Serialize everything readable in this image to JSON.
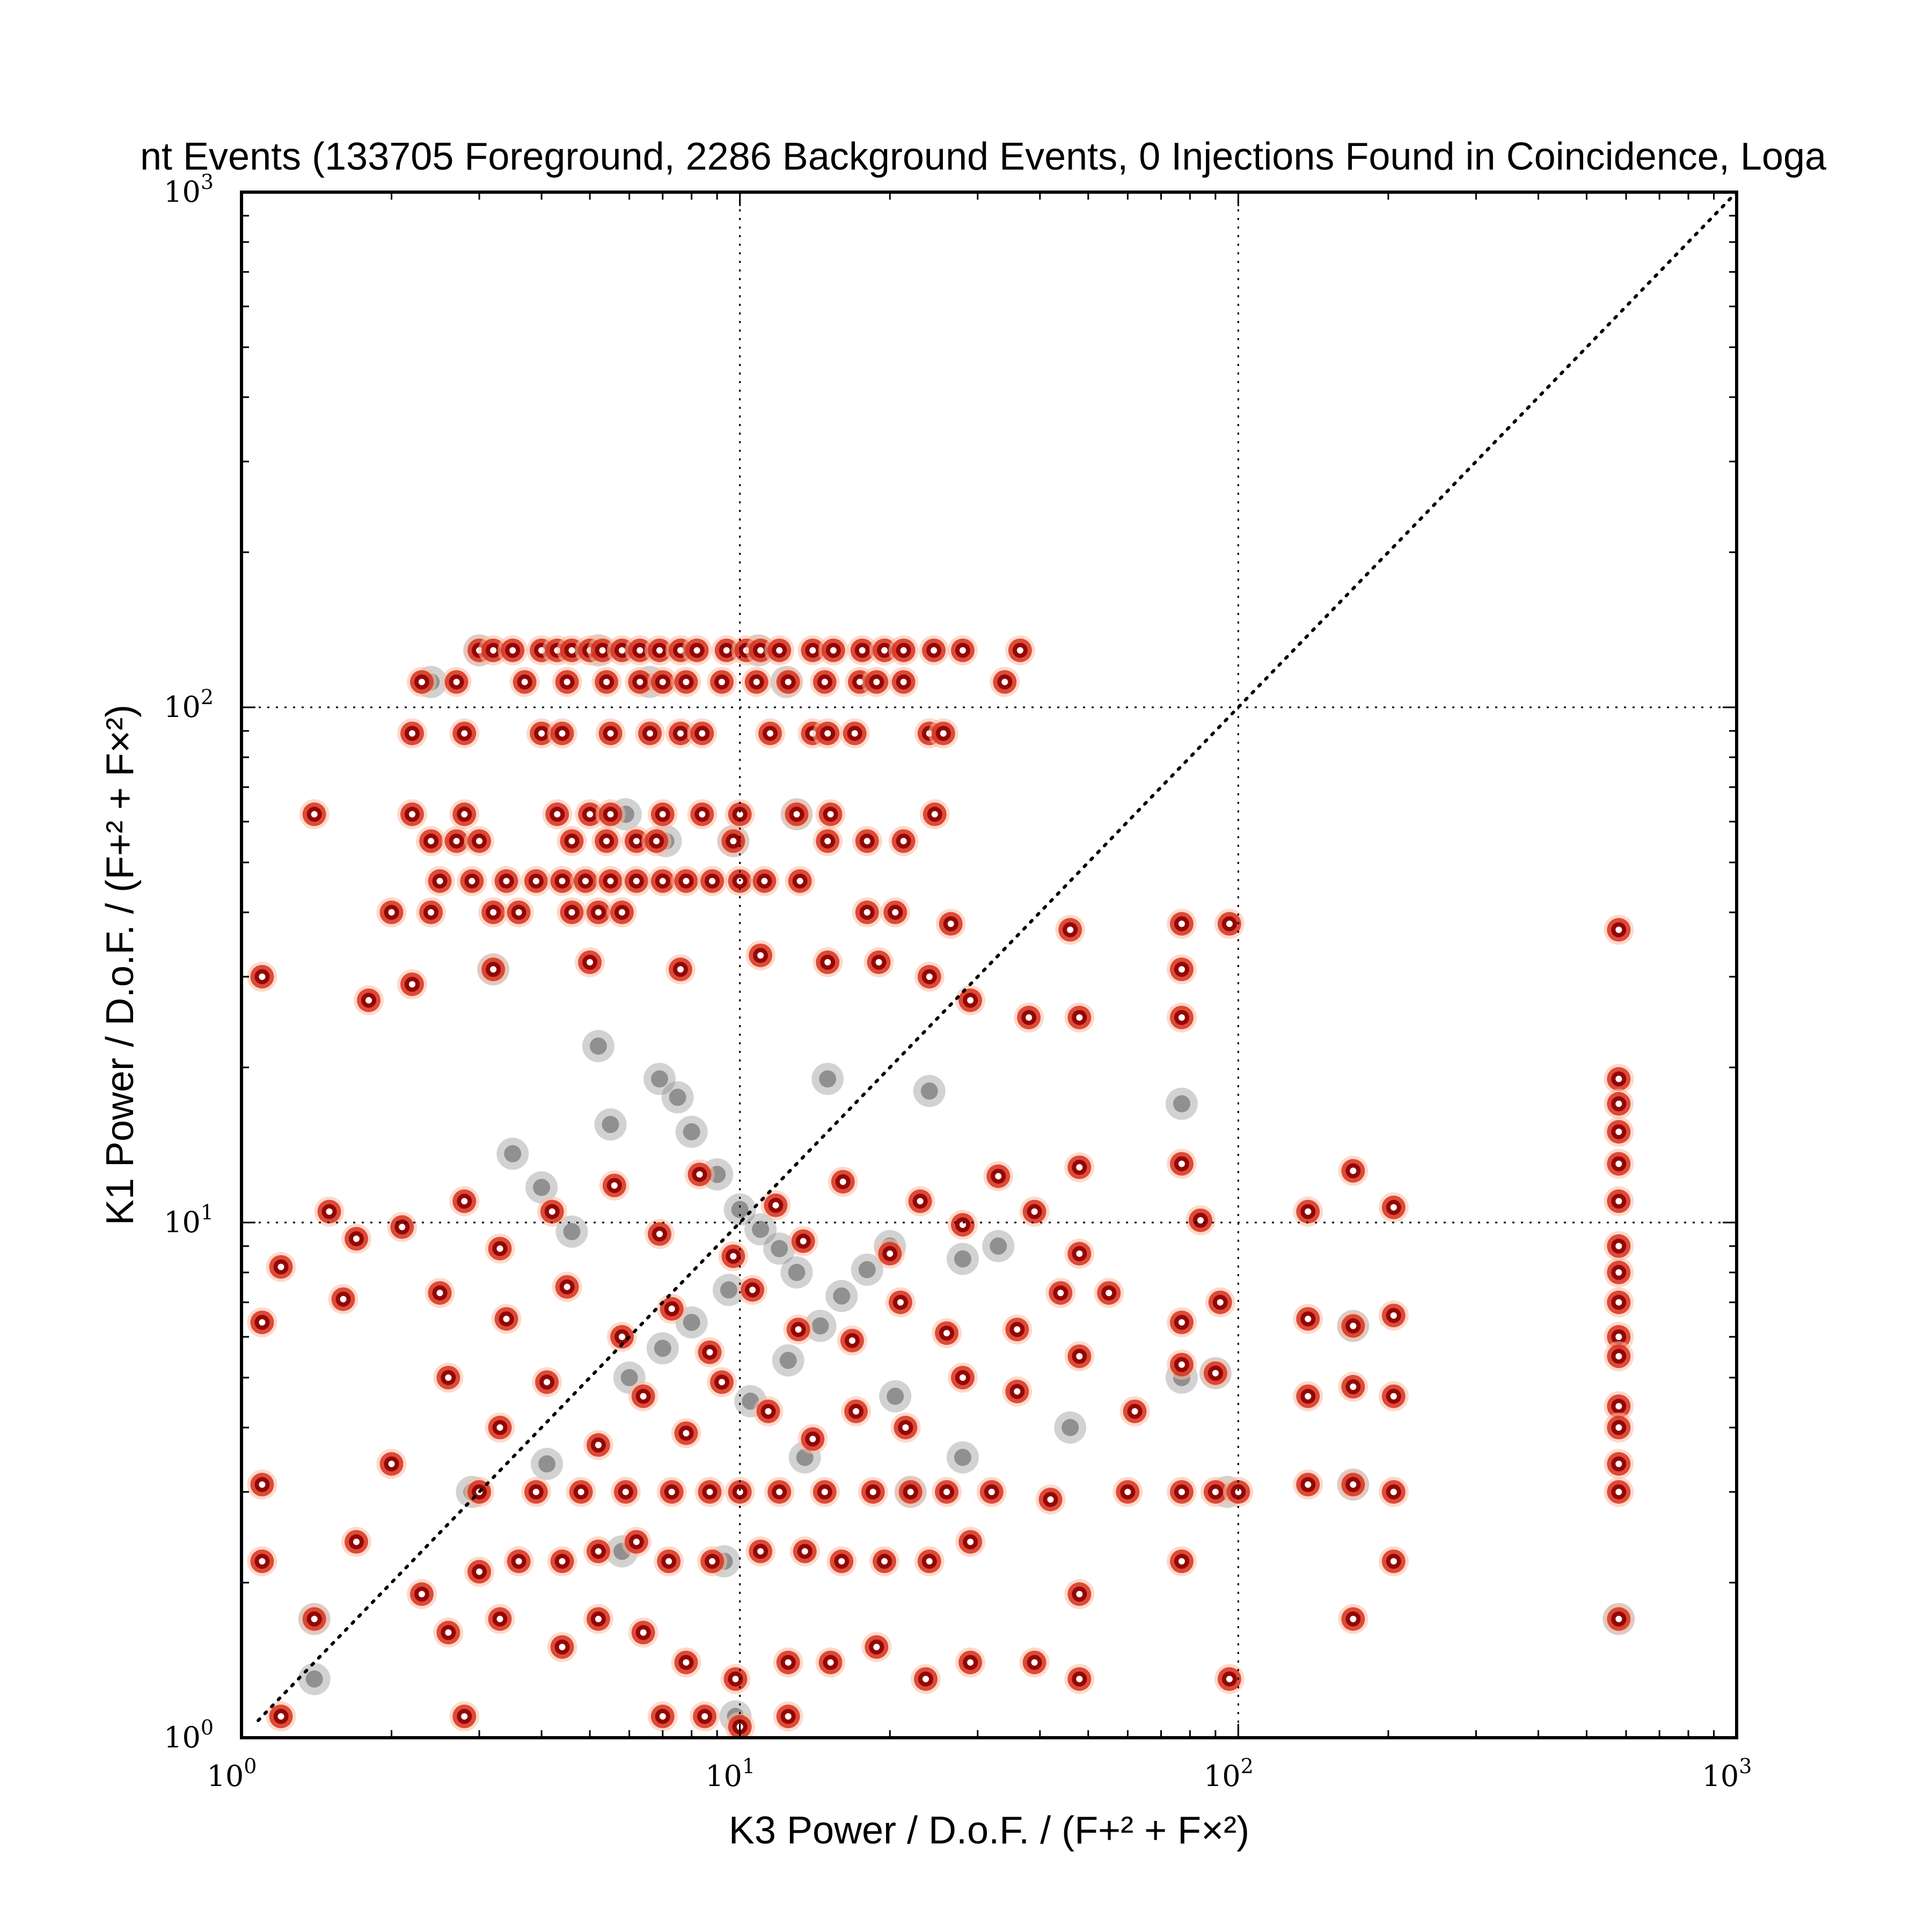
{
  "chart_data": {
    "type": "scatter",
    "title": "nt Events (133705 Foreground, 2286 Background Events, 0 Injections Found in Coincidence, Loga",
    "xlabel": "K3 Power / D.o.F. / (F+² + F×²)",
    "ylabel": "K1 Power / D.o.F. / (F+² + F×²)",
    "xscale": "log",
    "yscale": "log",
    "xlim": [
      1,
      1000
    ],
    "ylim": [
      1,
      1000
    ],
    "grid": true,
    "x_ticks": [
      {
        "base": "10",
        "exp": "0"
      },
      {
        "base": "10",
        "exp": "1"
      },
      {
        "base": "10",
        "exp": "2"
      },
      {
        "base": "10",
        "exp": "3"
      }
    ],
    "y_ticks": [
      {
        "base": "10",
        "exp": "0"
      },
      {
        "base": "10",
        "exp": "1"
      },
      {
        "base": "10",
        "exp": "2"
      },
      {
        "base": "10",
        "exp": "3"
      }
    ],
    "reference_line": "y = x",
    "colors": {
      "foreground_density": "#d7301f",
      "foreground_core": "#8b0000",
      "background_density": "#7f7f7f"
    },
    "foreground_points": [
      [
        3.0,
        129
      ],
      [
        3.2,
        129
      ],
      [
        3.5,
        129
      ],
      [
        4.0,
        129
      ],
      [
        4.3,
        129
      ],
      [
        4.6,
        129
      ],
      [
        5.0,
        129
      ],
      [
        5.3,
        129
      ],
      [
        5.8,
        129
      ],
      [
        6.3,
        129
      ],
      [
        6.9,
        129
      ],
      [
        7.6,
        129
      ],
      [
        8.2,
        129
      ],
      [
        9.4,
        129
      ],
      [
        10.3,
        129
      ],
      [
        11.0,
        129
      ],
      [
        12.0,
        129
      ],
      [
        14.0,
        129
      ],
      [
        15.4,
        129
      ],
      [
        17.6,
        129
      ],
      [
        19.5,
        129
      ],
      [
        21.3,
        129
      ],
      [
        24.5,
        129
      ],
      [
        28.0,
        129
      ],
      [
        36.5,
        129
      ],
      [
        2.3,
        112
      ],
      [
        2.7,
        112
      ],
      [
        3.7,
        112
      ],
      [
        4.5,
        112
      ],
      [
        5.4,
        112
      ],
      [
        6.3,
        112
      ],
      [
        7.0,
        112
      ],
      [
        7.8,
        112
      ],
      [
        9.2,
        112
      ],
      [
        10.8,
        112
      ],
      [
        12.5,
        112
      ],
      [
        14.8,
        112
      ],
      [
        17.4,
        112
      ],
      [
        18.8,
        112
      ],
      [
        21.3,
        112
      ],
      [
        34.0,
        112
      ],
      [
        2.2,
        89
      ],
      [
        2.8,
        89
      ],
      [
        4.0,
        89
      ],
      [
        4.4,
        89
      ],
      [
        5.5,
        89
      ],
      [
        6.6,
        89
      ],
      [
        7.6,
        89
      ],
      [
        8.4,
        89
      ],
      [
        11.5,
        89
      ],
      [
        14.0,
        89
      ],
      [
        15.0,
        89
      ],
      [
        17.0,
        89
      ],
      [
        24.0,
        89
      ],
      [
        25.6,
        89
      ],
      [
        1.4,
        62
      ],
      [
        2.2,
        62
      ],
      [
        2.8,
        62
      ],
      [
        4.3,
        62
      ],
      [
        5.0,
        62
      ],
      [
        5.5,
        62
      ],
      [
        7.0,
        62
      ],
      [
        8.4,
        62
      ],
      [
        10.0,
        62
      ],
      [
        13.0,
        62
      ],
      [
        15.2,
        62
      ],
      [
        24.6,
        62
      ],
      [
        2.4,
        55
      ],
      [
        2.7,
        55
      ],
      [
        3.0,
        55
      ],
      [
        4.6,
        55
      ],
      [
        5.4,
        55
      ],
      [
        6.2,
        55
      ],
      [
        6.8,
        55
      ],
      [
        9.7,
        55
      ],
      [
        15.0,
        55
      ],
      [
        18.0,
        55
      ],
      [
        21.3,
        55
      ],
      [
        2.5,
        46
      ],
      [
        2.9,
        46
      ],
      [
        3.4,
        46
      ],
      [
        3.9,
        46
      ],
      [
        4.4,
        46
      ],
      [
        4.9,
        46
      ],
      [
        5.5,
        46
      ],
      [
        6.2,
        46
      ],
      [
        7.0,
        46
      ],
      [
        7.8,
        46
      ],
      [
        8.8,
        46
      ],
      [
        10.0,
        46
      ],
      [
        11.2,
        46
      ],
      [
        13.2,
        46
      ],
      [
        2.0,
        40
      ],
      [
        2.4,
        40
      ],
      [
        3.2,
        40
      ],
      [
        3.6,
        40
      ],
      [
        4.6,
        40
      ],
      [
        5.2,
        40
      ],
      [
        5.8,
        40
      ],
      [
        18.0,
        40
      ],
      [
        20.5,
        40
      ],
      [
        26.5,
        38
      ],
      [
        46,
        37
      ],
      [
        77,
        38
      ],
      [
        96,
        38
      ],
      [
        580,
        37
      ],
      [
        1.1,
        30
      ],
      [
        1.8,
        27
      ],
      [
        2.2,
        29
      ],
      [
        3.2,
        31
      ],
      [
        5.0,
        32
      ],
      [
        7.6,
        31
      ],
      [
        11.0,
        33
      ],
      [
        15.0,
        32
      ],
      [
        19.0,
        32
      ],
      [
        24.0,
        30
      ],
      [
        29.0,
        27
      ],
      [
        38.0,
        25
      ],
      [
        48.0,
        25
      ],
      [
        77,
        31
      ],
      [
        77,
        25
      ],
      [
        580,
        19
      ],
      [
        580,
        17
      ],
      [
        580,
        15
      ],
      [
        580,
        13
      ],
      [
        580,
        11
      ],
      [
        1.5,
        10.5
      ],
      [
        1.7,
        9.3
      ],
      [
        1.2,
        8.2
      ],
      [
        1.6,
        7.1
      ],
      [
        1.1,
        6.4
      ],
      [
        2.1,
        9.8
      ],
      [
        2.8,
        11.0
      ],
      [
        3.3,
        8.9
      ],
      [
        4.2,
        10.5
      ],
      [
        5.6,
        11.8
      ],
      [
        6.9,
        9.5
      ],
      [
        8.3,
        12.4
      ],
      [
        9.7,
        8.6
      ],
      [
        11.8,
        10.8
      ],
      [
        13.4,
        9.2
      ],
      [
        16.1,
        12.0
      ],
      [
        20.0,
        8.7
      ],
      [
        23.0,
        11.0
      ],
      [
        28.0,
        9.9
      ],
      [
        33.0,
        12.3
      ],
      [
        39.0,
        10.5
      ],
      [
        48.0,
        12.8
      ],
      [
        48,
        8.7
      ],
      [
        77,
        13.0
      ],
      [
        84,
        10.1
      ],
      [
        138,
        10.5
      ],
      [
        170,
        12.6
      ],
      [
        205,
        10.7
      ],
      [
        580,
        9.0
      ],
      [
        580,
        8.0
      ],
      [
        580,
        7.0
      ],
      [
        580,
        6.0
      ],
      [
        580,
        5.5
      ],
      [
        580,
        4.4
      ],
      [
        580,
        4.0
      ],
      [
        580,
        3.4
      ],
      [
        580,
        3.0
      ],
      [
        580,
        1.7
      ],
      [
        2.5,
        7.3
      ],
      [
        3.4,
        6.5
      ],
      [
        4.5,
        7.5
      ],
      [
        5.8,
        6.0
      ],
      [
        7.3,
        6.8
      ],
      [
        8.7,
        5.6
      ],
      [
        10.6,
        7.4
      ],
      [
        13.1,
        6.2
      ],
      [
        16.8,
        5.9
      ],
      [
        21.0,
        7.0
      ],
      [
        26.0,
        6.1
      ],
      [
        36.0,
        6.2
      ],
      [
        44.0,
        7.3
      ],
      [
        55.0,
        7.3
      ],
      [
        77,
        6.4
      ],
      [
        92,
        7.0
      ],
      [
        138,
        6.5
      ],
      [
        170,
        6.3
      ],
      [
        205,
        6.6
      ],
      [
        2.6,
        5.0
      ],
      [
        3.3,
        4.0
      ],
      [
        4.1,
        4.9
      ],
      [
        5.2,
        3.7
      ],
      [
        6.4,
        4.6
      ],
      [
        7.8,
        3.9
      ],
      [
        9.2,
        4.9
      ],
      [
        11.4,
        4.3
      ],
      [
        14.0,
        3.8
      ],
      [
        17.1,
        4.3
      ],
      [
        21.5,
        4.0
      ],
      [
        28.0,
        5.0
      ],
      [
        36.0,
        4.7
      ],
      [
        48.0,
        5.5
      ],
      [
        62.0,
        4.3
      ],
      [
        77,
        5.3
      ],
      [
        90,
        5.1
      ],
      [
        138,
        4.6
      ],
      [
        170,
        4.8
      ],
      [
        205,
        4.6
      ],
      [
        1.1,
        3.1
      ],
      [
        2.0,
        3.4
      ],
      [
        3.0,
        3.0
      ],
      [
        3.9,
        3.0
      ],
      [
        4.8,
        3.0
      ],
      [
        5.9,
        3.0
      ],
      [
        7.3,
        3.0
      ],
      [
        8.7,
        3.0
      ],
      [
        10.0,
        3.0
      ],
      [
        12.0,
        3.0
      ],
      [
        14.8,
        3.0
      ],
      [
        18.5,
        3.0
      ],
      [
        22.0,
        3.0
      ],
      [
        26.0,
        3.0
      ],
      [
        32.0,
        3.0
      ],
      [
        42.0,
        2.9
      ],
      [
        60,
        3.0
      ],
      [
        77,
        3.0
      ],
      [
        90,
        3.0
      ],
      [
        100,
        3.0
      ],
      [
        138,
        3.1
      ],
      [
        170,
        3.1
      ],
      [
        205,
        3.0
      ],
      [
        1.1,
        2.2
      ],
      [
        1.7,
        2.4
      ],
      [
        2.3,
        1.9
      ],
      [
        3.0,
        2.1
      ],
      [
        3.6,
        2.2
      ],
      [
        4.4,
        2.2
      ],
      [
        5.2,
        2.3
      ],
      [
        6.2,
        2.4
      ],
      [
        7.2,
        2.2
      ],
      [
        8.8,
        2.2
      ],
      [
        11.0,
        2.3
      ],
      [
        13.5,
        2.3
      ],
      [
        16.0,
        2.2
      ],
      [
        19.5,
        2.2
      ],
      [
        24.0,
        2.2
      ],
      [
        29.0,
        2.4
      ],
      [
        48,
        1.9
      ],
      [
        77,
        2.2
      ],
      [
        205,
        2.2
      ],
      [
        1.4,
        1.7
      ],
      [
        2.6,
        1.6
      ],
      [
        3.3,
        1.7
      ],
      [
        4.4,
        1.5
      ],
      [
        5.2,
        1.7
      ],
      [
        6.4,
        1.6
      ],
      [
        7.8,
        1.4
      ],
      [
        9.8,
        1.3
      ],
      [
        12.5,
        1.4
      ],
      [
        15.2,
        1.4
      ],
      [
        18.8,
        1.5
      ],
      [
        23.6,
        1.3
      ],
      [
        29.0,
        1.4
      ],
      [
        39.0,
        1.4
      ],
      [
        48,
        1.3
      ],
      [
        96,
        1.3
      ],
      [
        170,
        1.7
      ],
      [
        1.2,
        1.1
      ],
      [
        2.8,
        1.1
      ],
      [
        7.0,
        1.1
      ],
      [
        8.5,
        1.1
      ],
      [
        10.0,
        1.05
      ],
      [
        12.5,
        1.1
      ]
    ],
    "background_points": [
      [
        2.4,
        112
      ],
      [
        5.2,
        129
      ],
      [
        6.6,
        112
      ],
      [
        10.9,
        129
      ],
      [
        12.4,
        112
      ],
      [
        3.0,
        129
      ],
      [
        5.9,
        62
      ],
      [
        7.1,
        55
      ],
      [
        13.0,
        62
      ],
      [
        9.7,
        55
      ],
      [
        3.2,
        31
      ],
      [
        5.2,
        22
      ],
      [
        6.9,
        19
      ],
      [
        8.0,
        15
      ],
      [
        9.0,
        12.4
      ],
      [
        10.0,
        10.6
      ],
      [
        11.0,
        9.7
      ],
      [
        12.0,
        8.9
      ],
      [
        13.0,
        8.0
      ],
      [
        9.5,
        7.4
      ],
      [
        8.0,
        6.4
      ],
      [
        7.0,
        5.7
      ],
      [
        6.0,
        5.0
      ],
      [
        10.5,
        4.5
      ],
      [
        12.5,
        5.4
      ],
      [
        14.5,
        6.3
      ],
      [
        16.0,
        7.2
      ],
      [
        18.0,
        8.1
      ],
      [
        20.0,
        9.0
      ],
      [
        4.6,
        9.6
      ],
      [
        4.0,
        11.7
      ],
      [
        3.5,
        13.6
      ],
      [
        5.5,
        15.5
      ],
      [
        7.5,
        17.5
      ],
      [
        15.0,
        19.0
      ],
      [
        24.0,
        18.0
      ],
      [
        28.0,
        8.5
      ],
      [
        33.0,
        9.0
      ],
      [
        2.9,
        3.0
      ],
      [
        4.1,
        3.4
      ],
      [
        5.8,
        2.3
      ],
      [
        9.3,
        2.2
      ],
      [
        13.5,
        3.5
      ],
      [
        20.5,
        4.6
      ],
      [
        22.0,
        3.0
      ],
      [
        28.0,
        3.5
      ],
      [
        46.0,
        4.0
      ],
      [
        77,
        5.0
      ],
      [
        90,
        5.1
      ],
      [
        95,
        3.0
      ],
      [
        170,
        3.1
      ],
      [
        170,
        6.3
      ],
      [
        580,
        1.7
      ],
      [
        77,
        17.0
      ],
      [
        1.4,
        1.3
      ],
      [
        1.4,
        1.7
      ],
      [
        9.8,
        1.1
      ]
    ]
  }
}
